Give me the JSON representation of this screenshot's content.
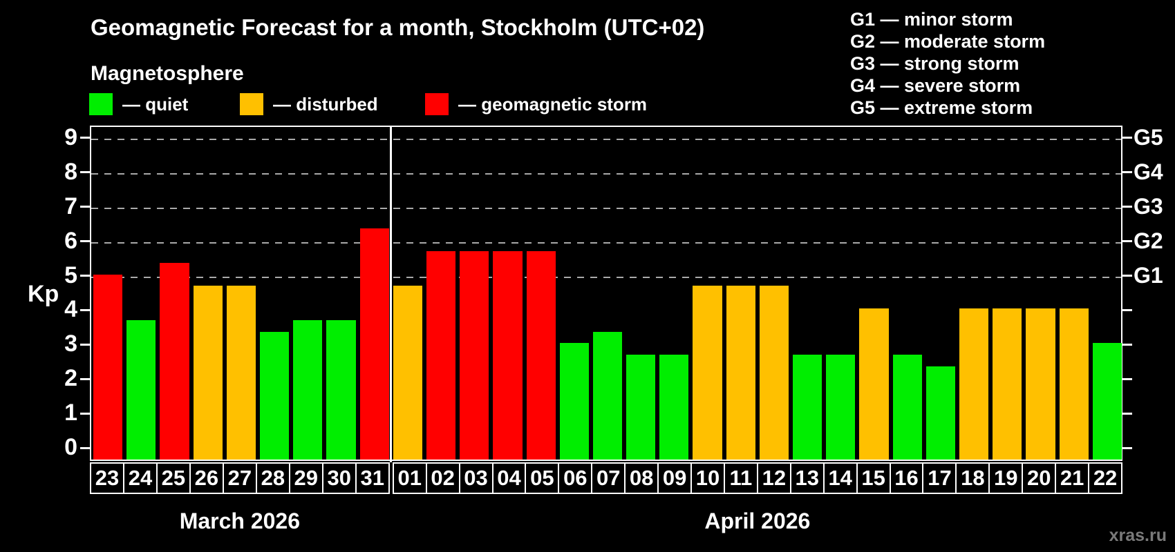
{
  "title": "Geomagnetic Forecast for a month, Stockholm (UTC+02)",
  "subtitle": "Magnetosphere",
  "watermark": "xras.ru",
  "legend": {
    "quiet": {
      "label": "— quiet",
      "color": "#00ee00"
    },
    "disturbed": {
      "label": "— disturbed",
      "color": "#ffc000"
    },
    "storm": {
      "label": "— geomagnetic storm",
      "color": "#ff0000"
    }
  },
  "g_legend": [
    "G1 — minor storm",
    "G2 — moderate storm",
    "G3 — strong storm",
    "G4 — severe storm",
    "G5 — extreme storm"
  ],
  "chart_data": {
    "type": "bar",
    "title": "Geomagnetic Forecast for a month, Stockholm (UTC+02)",
    "ylabel": "Kp",
    "ylim": [
      0,
      9
    ],
    "kp_ticks": [
      0,
      1,
      2,
      3,
      4,
      5,
      6,
      7,
      8,
      9
    ],
    "grid_levels": [
      5,
      6,
      7,
      8,
      9
    ],
    "right_axis": [
      {
        "kp": 5,
        "label": "G1"
      },
      {
        "kp": 6,
        "label": "G2"
      },
      {
        "kp": 7,
        "label": "G3"
      },
      {
        "kp": 8,
        "label": "G4"
      },
      {
        "kp": 9,
        "label": "G5"
      }
    ],
    "groups": [
      {
        "label": "March 2026",
        "days": [
          "23",
          "24",
          "25",
          "26",
          "27",
          "28",
          "29",
          "30",
          "31"
        ],
        "values": [
          5.0,
          3.67,
          5.33,
          4.67,
          4.67,
          3.33,
          3.67,
          3.67,
          6.33
        ],
        "levels": [
          "storm",
          "quiet",
          "storm",
          "disturbed",
          "disturbed",
          "quiet",
          "quiet",
          "quiet",
          "storm"
        ]
      },
      {
        "label": "April 2026",
        "days": [
          "01",
          "02",
          "03",
          "04",
          "05",
          "06",
          "07",
          "08",
          "09",
          "10",
          "11",
          "12",
          "13",
          "14",
          "15",
          "16",
          "17",
          "18",
          "19",
          "20",
          "21",
          "22"
        ],
        "values": [
          4.67,
          5.67,
          5.67,
          5.67,
          5.67,
          3.0,
          3.33,
          2.67,
          2.67,
          4.67,
          4.67,
          4.67,
          2.67,
          2.67,
          4.0,
          2.67,
          2.33,
          4.0,
          4.0,
          4.0,
          4.0,
          3.0
        ],
        "levels": [
          "disturbed",
          "storm",
          "storm",
          "storm",
          "storm",
          "quiet",
          "quiet",
          "quiet",
          "quiet",
          "disturbed",
          "disturbed",
          "disturbed",
          "quiet",
          "quiet",
          "disturbed",
          "quiet",
          "quiet",
          "disturbed",
          "disturbed",
          "disturbed",
          "disturbed",
          "quiet"
        ]
      }
    ]
  }
}
